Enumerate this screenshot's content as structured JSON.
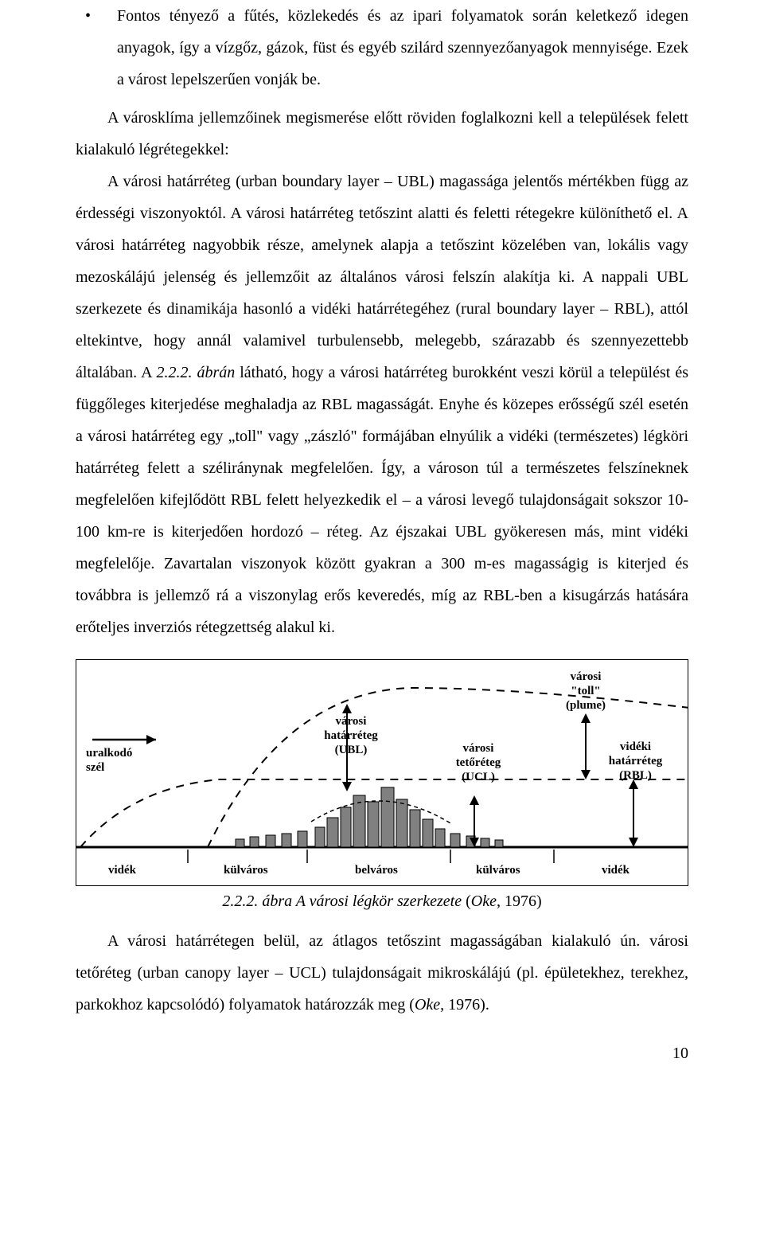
{
  "bullet": {
    "marker": "•",
    "text": "Fontos tényező a fűtés, közlekedés és az ipari folyamatok során keletkező idegen anyagok, így a vízgőz, gázok, füst és egyéb szilárd szennyezőanyagok mennyisége. Ezek a várost lepelszerűen vonják be."
  },
  "para1": "A városklíma jellemzőinek megismerése előtt röviden foglalkozni kell a települések felett kialakuló légrétegekkel:",
  "para2_a": "A városi határréteg (urban boundary layer – UBL) magassága jelentős mértékben függ az érdességi viszonyoktól. A városi határréteg tetőszint alatti és feletti rétegekre különíthető el. A városi határréteg nagyobbik része, amelynek alapja a tetőszint közelében van, lokális vagy mezoskálájú jelenség és jellemzőit az általános városi felszín alakítja ki. A nappali UBL szerkezete és dinamikája hasonló a vidéki határrétegéhez (rural boundary layer – RBL), attól eltekintve, hogy annál valamivel turbulensebb, melegebb, szárazabb és szennyezettebb általában. A ",
  "para2_italic": "2.2.2. ábrán",
  "para2_b": " látható, hogy a városi határréteg burokként veszi körül a települést és függőleges kiterjedése meghaladja az RBL magasságát. Enyhe és közepes erősségű szél esetén a városi határréteg egy „toll\" vagy „zászló\" formájában elnyúlik a vidéki (természetes) légköri határréteg felett a széliránynak megfelelően. Így, a városon túl a természetes felszíneknek megfelelően kifejlődött RBL felett helyezkedik el – a városi levegő tulajdonságait sokszor 10-100 km-re is kiterjedően hordozó – réteg. Az éjszakai UBL gyökeresen más, mint vidéki megfelelője. Zavartalan viszonyok között gyakran a 300 m-es magasságig is kiterjed és továbbra is jellemző rá a viszonylag erős keveredés, míg az RBL-ben a kisugárzás hatására erőteljes inverziós rétegzettség alakul ki.",
  "figure": {
    "labels": {
      "uralkodo": "uralkodó\nszél",
      "ubl": "városi\nhatárréteg\n(UBL)",
      "ucl": "városi\ntetőréteg\n(UCL)",
      "plume": "városi\n\"toll\"\n(plume)",
      "rbl": "vidéki\nhatárréteg\n(RBL)"
    },
    "bottom": [
      "vidék",
      "külváros",
      "belváros",
      "külváros",
      "vidék"
    ],
    "colors": {
      "stroke": "#000000",
      "fill_buildings": "#808080",
      "ground": "#000000"
    }
  },
  "caption": {
    "left_italic": "2.2.2. ábra  A városi légkör szerkezete",
    "paren": " (",
    "oke_italic": "Oke",
    "year": ", 1976)"
  },
  "para3_a": "A városi határrétegen belül, az átlagos tetőszint magasságában kialakuló ún. városi tetőréteg (urban canopy layer – UCL) tulajdonságait mikroskálájú (pl. épületekhez, terekhez, parkokhoz kapcsolódó) folyamatok határozzák meg (",
  "para3_italic": "Oke",
  "para3_b": ", 1976).",
  "pagenum": "10"
}
